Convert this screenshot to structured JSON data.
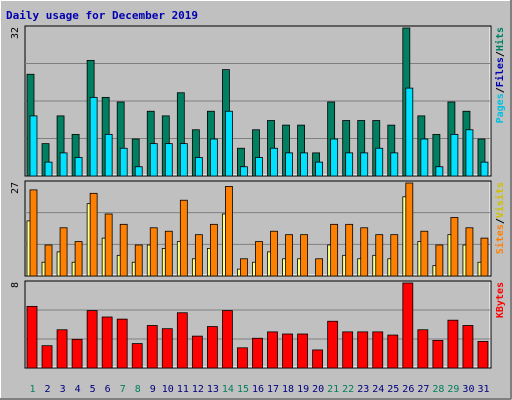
{
  "title": "Daily usage for December 2019",
  "colors": {
    "background": "#c0c0c0",
    "plot_bg": "#c0c0c0",
    "title_text": "#0000b0",
    "hits_bar": "#008060",
    "files_bar": "#00e0ff",
    "pages_bar": "#00c0e0",
    "visits_bar": "#ffff80",
    "sites_bar": "#ff8000",
    "kbytes_bar": "#ff0000",
    "weekday_label": "#000080",
    "weekend_label": "#00805c"
  },
  "chart_data": [
    {
      "type": "bar",
      "panel": "hits-files-pages",
      "ymax_label": "32",
      "ylim": [
        0,
        32
      ],
      "legend": {
        "hits": "Hits",
        "files": "Files",
        "pages": "Pages",
        "sep": "/"
      },
      "categories": [
        "1",
        "2",
        "3",
        "4",
        "5",
        "6",
        "7",
        "8",
        "9",
        "10",
        "11",
        "12",
        "13",
        "14",
        "15",
        "16",
        "17",
        "18",
        "19",
        "20",
        "21",
        "22",
        "23",
        "24",
        "25",
        "26",
        "27",
        "28",
        "29",
        "30",
        "31"
      ],
      "series": [
        {
          "name": "Hits",
          "values": [
            22,
            7,
            13,
            9,
            25,
            17,
            16,
            8,
            14,
            13,
            18,
            10,
            14,
            23,
            6,
            10,
            12,
            11,
            11,
            5,
            16,
            12,
            12,
            12,
            11,
            32,
            13,
            9,
            16,
            14,
            8
          ]
        },
        {
          "name": "Files",
          "values": [
            13,
            3,
            5,
            4,
            17,
            9,
            6,
            2,
            7,
            7,
            7,
            4,
            8,
            14,
            2,
            4,
            6,
            5,
            5,
            3,
            8,
            5,
            5,
            6,
            5,
            19,
            8,
            2,
            9,
            10,
            3
          ]
        },
        {
          "name": "Pages",
          "values": [
            13,
            3,
            5,
            4,
            17,
            9,
            6,
            2,
            7,
            7,
            7,
            4,
            8,
            14,
            2,
            4,
            6,
            5,
            5,
            3,
            8,
            5,
            5,
            6,
            5,
            19,
            8,
            2,
            9,
            10,
            3
          ]
        }
      ]
    },
    {
      "type": "bar",
      "panel": "visits-sites",
      "ymax_label": "27",
      "ylim": [
        0,
        27
      ],
      "legend": {
        "visits": "Visits",
        "sites": "Sites",
        "sep": "/"
      },
      "categories": [
        "1",
        "2",
        "3",
        "4",
        "5",
        "6",
        "7",
        "8",
        "9",
        "10",
        "11",
        "12",
        "13",
        "14",
        "15",
        "16",
        "17",
        "18",
        "19",
        "20",
        "21",
        "22",
        "23",
        "24",
        "25",
        "26",
        "27",
        "28",
        "29",
        "30",
        "31"
      ],
      "series": [
        {
          "name": "Visits",
          "values": [
            16,
            4,
            7,
            4,
            21,
            11,
            6,
            4,
            9,
            8,
            10,
            5,
            8,
            18,
            2,
            4,
            7,
            5,
            5,
            0,
            9,
            6,
            5,
            6,
            5,
            23,
            10,
            3,
            12,
            9,
            4
          ]
        },
        {
          "name": "Sites",
          "values": [
            25,
            9,
            14,
            10,
            24,
            18,
            15,
            9,
            14,
            13,
            22,
            12,
            15,
            26,
            5,
            10,
            13,
            12,
            12,
            5,
            15,
            15,
            14,
            12,
            12,
            27,
            13,
            9,
            17,
            14,
            11
          ]
        }
      ]
    },
    {
      "type": "bar",
      "panel": "kbytes",
      "ymax_label": "8",
      "ylim": [
        0,
        8
      ],
      "legend": {
        "kbytes": "KBytes"
      },
      "categories": [
        "1",
        "2",
        "3",
        "4",
        "5",
        "6",
        "7",
        "8",
        "9",
        "10",
        "11",
        "12",
        "13",
        "14",
        "15",
        "16",
        "17",
        "18",
        "19",
        "20",
        "21",
        "22",
        "23",
        "24",
        "25",
        "26",
        "27",
        "28",
        "29",
        "30",
        "31"
      ],
      "series": [
        {
          "name": "KBytes",
          "values": [
            5.8,
            2.1,
            3.6,
            2.7,
            5.4,
            4.8,
            4.6,
            2.3,
            4.0,
            3.7,
            5.2,
            3.0,
            3.9,
            5.4,
            1.9,
            2.8,
            3.4,
            3.2,
            3.2,
            1.7,
            4.4,
            3.4,
            3.4,
            3.4,
            3.1,
            8.0,
            3.6,
            2.6,
            4.5,
            4.0,
            2.5
          ]
        }
      ]
    }
  ],
  "x_axis": {
    "days": [
      "1",
      "2",
      "3",
      "4",
      "5",
      "6",
      "7",
      "8",
      "9",
      "10",
      "11",
      "12",
      "13",
      "14",
      "15",
      "16",
      "17",
      "18",
      "19",
      "20",
      "21",
      "22",
      "23",
      "24",
      "25",
      "26",
      "27",
      "28",
      "29",
      "30",
      "31"
    ],
    "weekend_days": [
      "1",
      "7",
      "8",
      "14",
      "15",
      "21",
      "22",
      "28",
      "29"
    ]
  }
}
